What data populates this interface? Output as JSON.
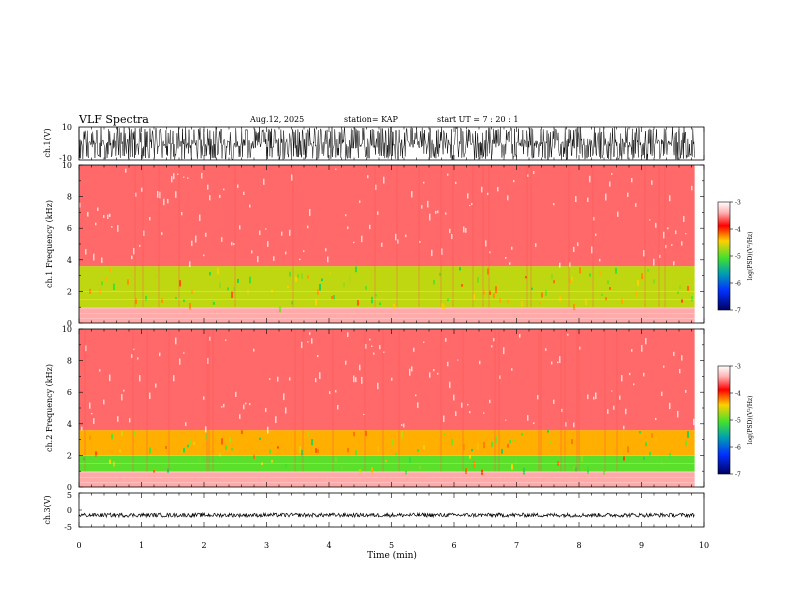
{
  "header": {
    "title": "VLF Spectra",
    "date": "Aug.12, 2025",
    "station": "station= KAP",
    "start": "start  UT =   7 : 20 : 1"
  },
  "chart_data": [
    {
      "type": "line",
      "name": "ch1-waveform",
      "ylabel": "ch.1(V)",
      "ylim": [
        -10,
        10
      ],
      "yticks": [
        "10",
        "-10"
      ],
      "xlim": [
        0,
        10
      ],
      "data_end_min": 9.85,
      "style": "dense noise spanning full range"
    },
    {
      "type": "heatmap",
      "name": "ch1-spectrogram",
      "ylabel": "ch.1 Frequency (kHz)",
      "ylim": [
        0,
        10
      ],
      "yticks": [
        "0",
        "2",
        "4",
        "6",
        "8",
        "10"
      ],
      "xlim": [
        0,
        10
      ],
      "data_end_min": 9.85,
      "colorbar": {
        "label": "log(PSD)(V²/Hz)",
        "range": [
          -7,
          -3
        ],
        "ticks": [
          "-3",
          "-4",
          "-5",
          "-6",
          "-7"
        ]
      },
      "bands_khz": [
        {
          "from": 0.0,
          "to": 1.0,
          "level": -3.3
        },
        {
          "from": 1.0,
          "to": 3.6,
          "level": -4.6
        },
        {
          "from": 3.6,
          "to": 10.0,
          "level": -3.5
        }
      ]
    },
    {
      "type": "heatmap",
      "name": "ch2-spectrogram",
      "ylabel": "ch.2 Frequency (kHz)",
      "ylim": [
        0,
        10
      ],
      "yticks": [
        "0",
        "2",
        "4",
        "6",
        "8",
        "10"
      ],
      "xlim": [
        0,
        10
      ],
      "data_end_min": 9.85,
      "colorbar": {
        "label": "log(PSD)(V²/Hz)",
        "range": [
          -7,
          -3
        ],
        "ticks": [
          "-3",
          "-4",
          "-5",
          "-6",
          "-7"
        ]
      },
      "bands_khz": [
        {
          "from": 0.0,
          "to": 1.0,
          "level": -3.3
        },
        {
          "from": 1.0,
          "to": 2.0,
          "level": -4.9
        },
        {
          "from": 2.0,
          "to": 3.6,
          "level": -4.3
        },
        {
          "from": 3.6,
          "to": 10.0,
          "level": -3.5
        }
      ]
    },
    {
      "type": "line",
      "name": "ch3-waveform",
      "ylabel": "ch.3(V)",
      "ylim": [
        -5,
        5
      ],
      "yticks": [
        "5",
        "0",
        "-5"
      ],
      "xlim": [
        0,
        10
      ],
      "data_end_min": 9.85,
      "center_v": -1.5,
      "amplitude_v": 0.6
    }
  ],
  "xaxis": {
    "label": "Time  (min)",
    "ticks": [
      "0",
      "1",
      "2",
      "3",
      "4",
      "5",
      "6",
      "7",
      "8",
      "9",
      "10"
    ]
  }
}
